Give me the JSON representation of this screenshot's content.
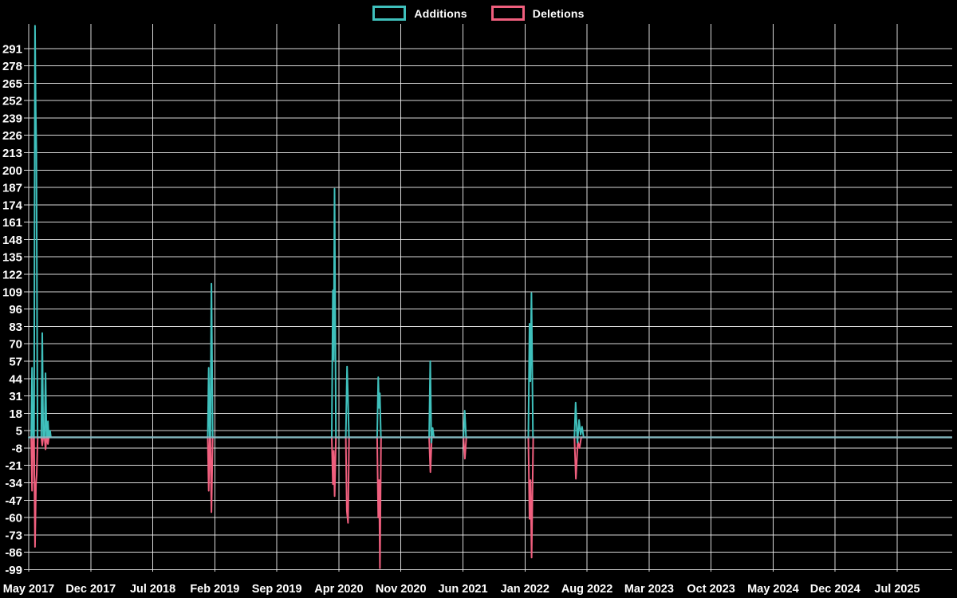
{
  "legend": {
    "items": [
      {
        "label": "Additions",
        "color": "#3fc0bc"
      },
      {
        "label": "Deletions",
        "color": "#f05f7e"
      }
    ]
  },
  "chart_data": {
    "type": "line",
    "title": "",
    "background": "#000000",
    "text_color": "#ffffff",
    "grid": true,
    "grid_color": "#ebebeb",
    "legend_position": "top-center",
    "baseline_overlap_color": "#93b7c2",
    "x_axis": {
      "labels": [
        "May 2017",
        "Dec 2017",
        "Jul 2018",
        "Feb 2019",
        "Sep 2019",
        "Apr 2020",
        "Nov 2020",
        "Jun 2021",
        "Jan 2022",
        "Aug 2022",
        "Mar 2023",
        "Oct 2023",
        "May 2024",
        "Dec 2024",
        "Jul 2025"
      ],
      "months_per_label": 7,
      "range_months": [
        0,
        104.1
      ]
    },
    "y_axis": {
      "ticks": [
        291,
        278,
        265,
        252,
        239,
        226,
        213,
        200,
        187,
        174,
        161,
        148,
        135,
        122,
        109,
        96,
        83,
        70,
        57,
        44,
        31,
        18,
        5,
        -8,
        -21,
        -34,
        -47,
        -60,
        -73,
        -86,
        -99
      ],
      "tick_step": 13,
      "min": -99,
      "max": 291
    },
    "series": [
      {
        "name": "Additions",
        "color": "#3fc0bc",
        "points": [
          [
            0,
            0
          ],
          [
            0.28,
            0
          ],
          [
            0.38,
            52
          ],
          [
            0.48,
            0
          ],
          [
            0.6,
            0
          ],
          [
            0.71,
            308
          ],
          [
            0.79,
            245
          ],
          [
            0.86,
            215
          ],
          [
            1.0,
            0
          ],
          [
            1.42,
            0
          ],
          [
            1.53,
            78
          ],
          [
            1.64,
            0
          ],
          [
            1.79,
            0
          ],
          [
            1.9,
            48
          ],
          [
            2.01,
            0
          ],
          [
            2.08,
            0
          ],
          [
            2.17,
            12
          ],
          [
            2.27,
            0
          ],
          [
            2.33,
            0
          ],
          [
            2.41,
            5
          ],
          [
            2.5,
            0
          ],
          [
            20.2,
            0
          ],
          [
            20.31,
            52
          ],
          [
            20.42,
            0
          ],
          [
            20.5,
            0
          ],
          [
            20.62,
            115
          ],
          [
            20.76,
            0
          ],
          [
            34.2,
            0
          ],
          [
            34.32,
            110
          ],
          [
            34.41,
            58
          ],
          [
            34.51,
            186
          ],
          [
            34.66,
            0
          ],
          [
            35.78,
            0
          ],
          [
            35.92,
            53
          ],
          [
            36.02,
            30
          ],
          [
            36.14,
            0
          ],
          [
            39.32,
            0
          ],
          [
            39.44,
            45
          ],
          [
            39.53,
            22
          ],
          [
            39.62,
            33
          ],
          [
            39.74,
            0
          ],
          [
            45.18,
            0
          ],
          [
            45.31,
            57
          ],
          [
            45.44,
            -4
          ],
          [
            45.58,
            7
          ],
          [
            45.72,
            0
          ],
          [
            49.06,
            0
          ],
          [
            49.2,
            20
          ],
          [
            49.35,
            0
          ],
          [
            56.38,
            0
          ],
          [
            56.51,
            85
          ],
          [
            56.61,
            42
          ],
          [
            56.73,
            108
          ],
          [
            56.9,
            0
          ],
          [
            61.58,
            0
          ],
          [
            61.72,
            26
          ],
          [
            61.92,
            -4
          ],
          [
            62.1,
            13
          ],
          [
            62.28,
            2
          ],
          [
            62.44,
            8
          ],
          [
            62.62,
            0
          ],
          [
            104.1,
            0
          ]
        ]
      },
      {
        "name": "Deletions",
        "color": "#f05f7e",
        "points": [
          [
            0,
            0
          ],
          [
            0.28,
            0
          ],
          [
            0.38,
            -40
          ],
          [
            0.48,
            0
          ],
          [
            0.6,
            0
          ],
          [
            0.71,
            -82
          ],
          [
            0.82,
            -35
          ],
          [
            0.9,
            -28
          ],
          [
            1.02,
            0
          ],
          [
            1.42,
            0
          ],
          [
            1.53,
            -6
          ],
          [
            1.64,
            0
          ],
          [
            1.79,
            0
          ],
          [
            1.9,
            -9
          ],
          [
            2.01,
            0
          ],
          [
            2.08,
            0
          ],
          [
            2.17,
            -5
          ],
          [
            2.27,
            0
          ],
          [
            20.2,
            0
          ],
          [
            20.31,
            -40
          ],
          [
            20.42,
            0
          ],
          [
            20.5,
            0
          ],
          [
            20.62,
            -56
          ],
          [
            20.76,
            0
          ],
          [
            34.2,
            0
          ],
          [
            34.32,
            -35
          ],
          [
            34.42,
            -10
          ],
          [
            34.52,
            -44
          ],
          [
            34.66,
            0
          ],
          [
            35.78,
            0
          ],
          [
            35.9,
            -55
          ],
          [
            36.03,
            -64
          ],
          [
            36.15,
            0
          ],
          [
            39.32,
            0
          ],
          [
            39.44,
            -60
          ],
          [
            39.54,
            -32
          ],
          [
            39.63,
            -98
          ],
          [
            39.76,
            0
          ],
          [
            45.18,
            0
          ],
          [
            45.33,
            -26
          ],
          [
            45.48,
            0
          ],
          [
            49.06,
            0
          ],
          [
            49.22,
            -16
          ],
          [
            49.38,
            0
          ],
          [
            56.38,
            0
          ],
          [
            56.51,
            -61
          ],
          [
            56.63,
            -32
          ],
          [
            56.75,
            -90
          ],
          [
            56.93,
            0
          ],
          [
            61.58,
            0
          ],
          [
            61.74,
            -31
          ],
          [
            61.96,
            -3
          ],
          [
            62.16,
            -8
          ],
          [
            62.35,
            0
          ],
          [
            104.1,
            0
          ]
        ]
      }
    ]
  }
}
